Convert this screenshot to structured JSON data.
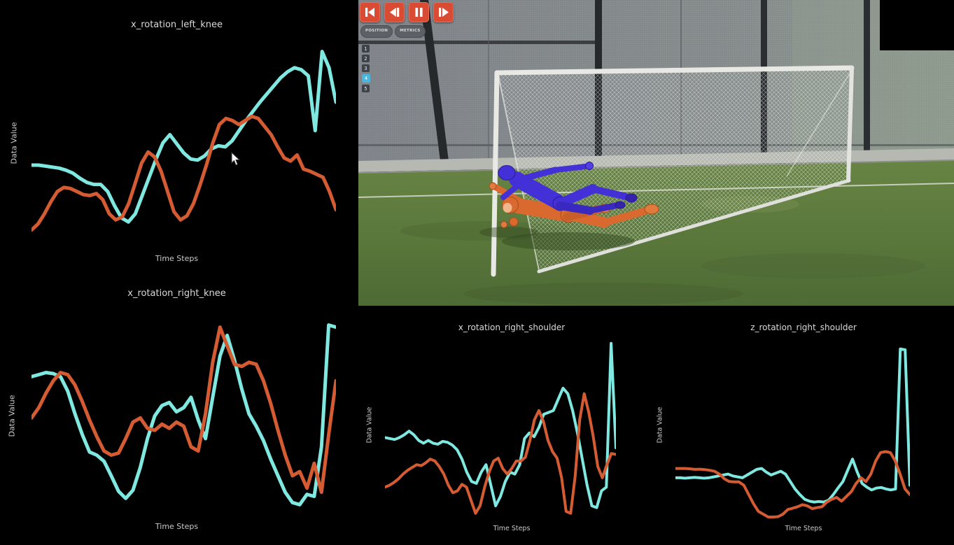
{
  "viewport": {
    "playback_controls": [
      {
        "name": "skip-to-start"
      },
      {
        "name": "step-backward"
      },
      {
        "name": "pause"
      },
      {
        "name": "step-forward"
      }
    ],
    "view_tabs": [
      {
        "label": "POSITION"
      },
      {
        "label": "METRICS"
      }
    ],
    "frame_selector": {
      "items": [
        "1",
        "2",
        "3",
        "4",
        "5"
      ],
      "active": "4"
    }
  },
  "colors": {
    "line_cyan": "#7fe8e0",
    "line_orange": "#d55c32",
    "button_red": "#da4b33",
    "frame_active_bg": "#49b6dd",
    "background": "#000000"
  },
  "chart_data": [
    {
      "type": "line",
      "title": "x_rotation_left_knee",
      "xlabel": "Time Steps",
      "ylabel": "Data Value",
      "ylim": [
        0,
        100
      ],
      "grid": false,
      "legend": "none",
      "series": [
        {
          "name": "cyan",
          "color": "#7fe8e0",
          "width": 5,
          "values": [
            40,
            40,
            39.5,
            39,
            38.5,
            37.5,
            36,
            33.5,
            31.5,
            30.5,
            30.5,
            27,
            20,
            14,
            12,
            16,
            25,
            34,
            43,
            51,
            55,
            50.5,
            46,
            43,
            42.5,
            44.5,
            48,
            49.5,
            49,
            52,
            57,
            62,
            66.5,
            71,
            75,
            79,
            83,
            86,
            88,
            87,
            84,
            57,
            96,
            88,
            71
          ]
        },
        {
          "name": "orange",
          "color": "#d55c32",
          "width": 5,
          "values": [
            8,
            11,
            16,
            22,
            27,
            29,
            28.5,
            27,
            25.5,
            25,
            26,
            23,
            16,
            13,
            14.5,
            21,
            31,
            41,
            46.5,
            44,
            37,
            27,
            17,
            13,
            15,
            21,
            30,
            40,
            51,
            60,
            63,
            62,
            60,
            62,
            64,
            63,
            59,
            55,
            49,
            43.5,
            42,
            45,
            38,
            37,
            35.5,
            34,
            27,
            18
          ]
        }
      ]
    },
    {
      "type": "line",
      "title": "x_rotation_right_knee",
      "xlabel": "Time Steps",
      "ylabel": "Data Value",
      "ylim": [
        0,
        100
      ],
      "grid": false,
      "legend": "none",
      "series": [
        {
          "name": "cyan",
          "color": "#7fe8e0",
          "width": 5,
          "values": [
            68,
            69,
            70,
            69.5,
            68,
            61,
            50,
            40,
            31.5,
            30,
            27,
            20,
            12.5,
            9,
            13,
            24,
            38,
            49,
            54,
            55.5,
            51,
            53,
            58,
            47,
            38,
            58,
            78,
            88,
            76,
            62,
            50,
            44,
            37,
            28,
            20,
            12,
            7,
            6,
            11,
            10,
            34,
            93,
            92
          ]
        },
        {
          "name": "orange",
          "color": "#d55c32",
          "width": 5,
          "values": [
            48,
            53,
            60,
            66,
            70,
            69,
            64,
            56,
            47,
            39,
            32,
            30,
            31,
            38,
            46,
            48,
            43,
            42,
            45,
            43,
            46,
            44,
            34,
            32,
            50,
            75,
            92,
            83,
            74,
            73,
            75,
            74,
            66,
            55,
            42,
            30,
            20,
            22,
            14,
            26,
            12,
            40,
            66
          ]
        }
      ]
    },
    {
      "type": "line",
      "title": "x_rotation_right_shoulder",
      "xlabel": "Time Steps",
      "ylabel": "Data Value",
      "ylim": [
        0,
        100
      ],
      "grid": false,
      "legend": "none",
      "series": [
        {
          "name": "cyan",
          "color": "#7fe8e0",
          "width": 4,
          "values": [
            45.5,
            45,
            44.5,
            45.5,
            47,
            49,
            47,
            44,
            42.5,
            44,
            42.5,
            42,
            43.5,
            43,
            41.5,
            39,
            34,
            27,
            22,
            21,
            27,
            31,
            20,
            9,
            14,
            22,
            27,
            26,
            31,
            45,
            48,
            46,
            51,
            58,
            59,
            60,
            66,
            72,
            69,
            60,
            48,
            34,
            20,
            9,
            8,
            17,
            19,
            96,
            40
          ]
        },
        {
          "name": "orange",
          "color": "#d55c32",
          "width": 4,
          "values": [
            19,
            20,
            21.5,
            23.5,
            26,
            28,
            29.5,
            31,
            30.5,
            32,
            34,
            33,
            30,
            26,
            20,
            16,
            17,
            20.5,
            19,
            12,
            5,
            9,
            19,
            27,
            33,
            34.5,
            29,
            26,
            29,
            33,
            33,
            35,
            44,
            55,
            60,
            54,
            44,
            38,
            34.5,
            24,
            6,
            5,
            25,
            55,
            69,
            59,
            46,
            30,
            24,
            31,
            37,
            36.5
          ]
        }
      ]
    },
    {
      "type": "line",
      "title": "z_rotation_right_shoulder",
      "xlabel": "Time Steps",
      "ylabel": "Data Value",
      "ylim": [
        0,
        100
      ],
      "grid": false,
      "legend": "none",
      "series": [
        {
          "name": "cyan",
          "color": "#7fe8e0",
          "width": 4,
          "values": [
            24,
            24,
            23.8,
            24,
            24.2,
            24,
            23.8,
            24,
            24.5,
            25,
            25.5,
            26,
            25,
            24.5,
            24,
            25.5,
            27,
            28.5,
            29,
            27,
            25.5,
            26.5,
            27.5,
            26,
            22,
            18,
            15,
            12.5,
            11.5,
            11,
            11.3,
            11,
            12,
            15,
            18.6,
            22,
            28,
            34,
            27,
            21,
            19,
            17.5,
            18.5,
            18.8,
            18,
            17.5,
            18,
            93,
            92.5,
            20
          ]
        },
        {
          "name": "orange",
          "color": "#d55c32",
          "width": 4,
          "values": [
            29,
            29,
            29,
            28.8,
            28.5,
            28.6,
            28.4,
            28,
            27.5,
            26,
            23.5,
            22,
            21.8,
            21.8,
            20,
            15,
            10,
            6,
            4.5,
            3,
            3,
            3.2,
            4.5,
            7,
            7.7,
            8.5,
            9.6,
            9,
            7.5,
            8,
            8.5,
            11,
            12.5,
            13.5,
            11.5,
            14,
            16.6,
            21,
            24,
            22,
            26,
            33,
            37.5,
            38,
            37.5,
            33,
            26,
            18,
            15
          ]
        }
      ]
    }
  ]
}
